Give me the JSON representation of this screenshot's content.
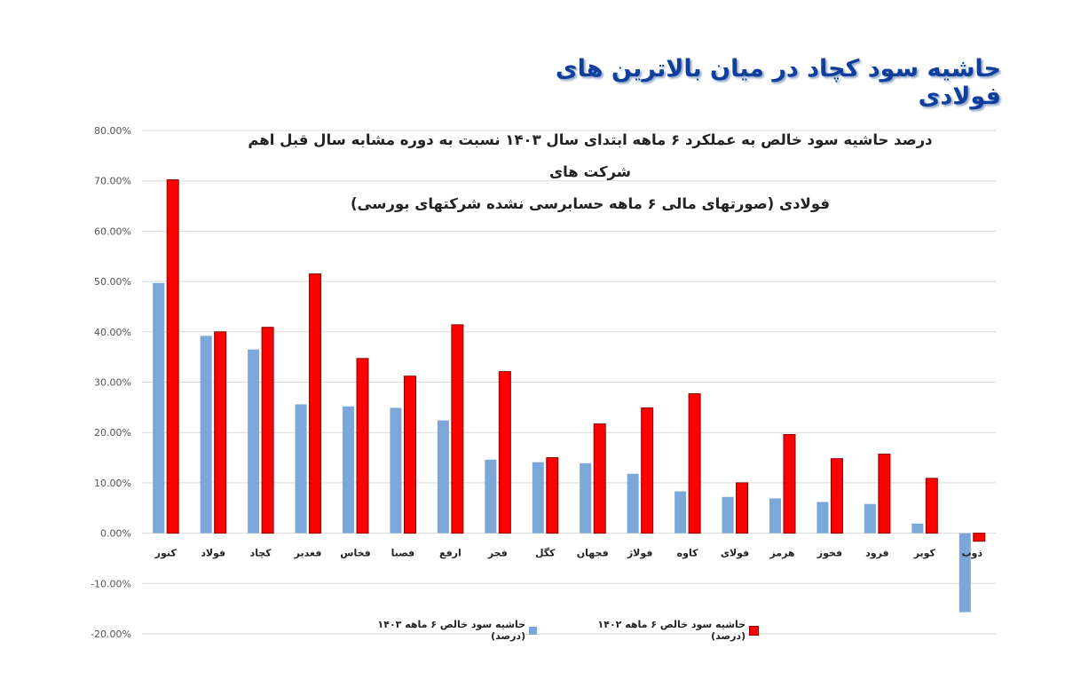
{
  "headline": "حاشیه سود کچاد در میان بالاترین های فولادی",
  "chart_data": {
    "type": "bar",
    "title": "درصد حاشیه سود خالص به عملکرد ۶ ماهه ابتدای سال ۱۴۰۳ نسبت به دوره مشابه سال قبل اهم شرکت های فولادی (صورتهای مالی ۶ ماهه حسابرسی نشده شرکتهای بورسی)",
    "title_line1": "درصد حاشیه سود خالص به عملکرد ۶ ماهه ابتدای سال ۱۴۰۳ نسبت به دوره مشابه سال قبل اهم شرکت های",
    "title_line2": "فولادی (صورتهای مالی ۶ ماهه حسابرسی نشده شرکتهای بورسی)",
    "xlabel": "",
    "ylabel": "",
    "ylim": [
      -0.2,
      0.8
    ],
    "yticks": [
      "80.00%",
      "70.00%",
      "60.00%",
      "50.00%",
      "40.00%",
      "30.00%",
      "20.00%",
      "10.00%",
      "0.00%",
      "-10.00%",
      "-20.00%"
    ],
    "grid": true,
    "legend_position": "bottom",
    "categories": [
      "کنور",
      "فولاد",
      "کچاد",
      "فغدیر",
      "فخاس",
      "فصبا",
      "ارفع",
      "فجر",
      "کگل",
      "فجهان",
      "فولاژ",
      "کاوه",
      "فولای",
      "هرمز",
      "فخوز",
      "فرود",
      "کویر",
      "ذوب"
    ],
    "series": [
      {
        "name": "حاشیه سود خالص ۶ ماهه ۱۴۰۳ (درصد)",
        "color": "#7ba7d9",
        "values": [
          0.497,
          0.392,
          0.365,
          0.256,
          0.252,
          0.249,
          0.224,
          0.146,
          0.141,
          0.139,
          0.118,
          0.083,
          0.072,
          0.069,
          0.062,
          0.058,
          0.019,
          -0.157
        ]
      },
      {
        "name": "حاشیه سود خالص ۶ ماهه ۱۴۰۲ (درصد)",
        "color": "#ff0000",
        "values": [
          0.702,
          0.4,
          0.409,
          0.515,
          0.347,
          0.312,
          0.414,
          0.321,
          0.15,
          0.217,
          0.249,
          0.277,
          0.1,
          0.196,
          0.148,
          0.157,
          0.109,
          -0.016
        ]
      }
    ]
  },
  "legend": {
    "items": [
      {
        "label": "حاشیه سود خالص ۶ ماهه ۱۴۰۲ (درصد)",
        "color": "#ff0000"
      },
      {
        "label": "حاشیه سود خالص ۶ ماهه ۱۴۰۳ (درصد)",
        "color": "#7ba7d9"
      }
    ]
  }
}
